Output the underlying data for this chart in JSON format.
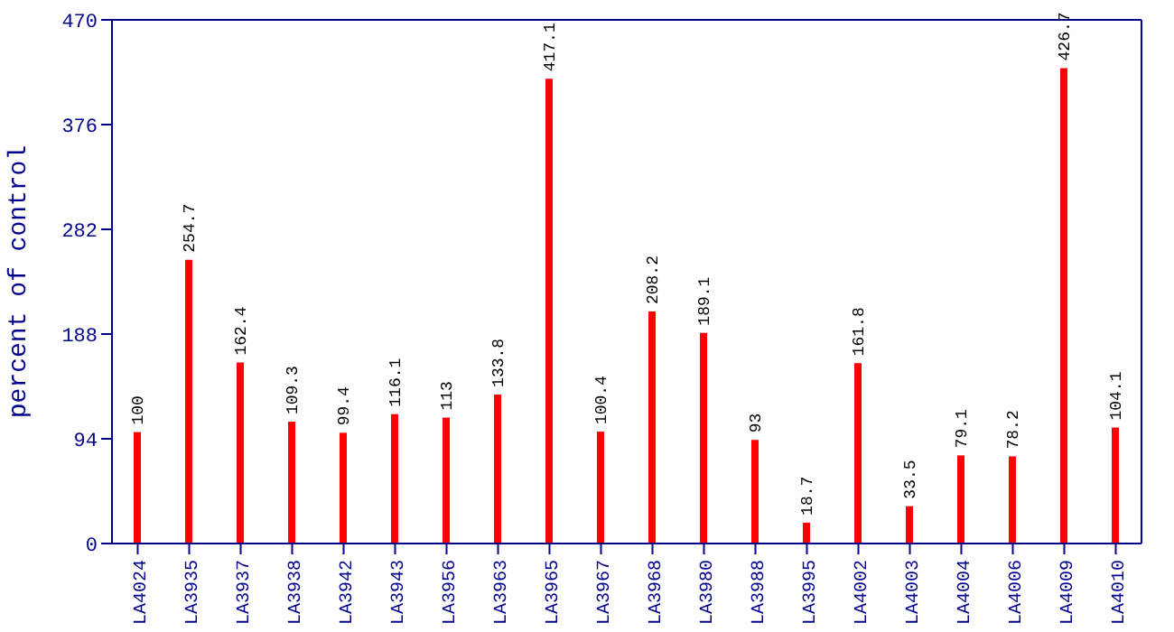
{
  "chart_data": {
    "type": "bar",
    "ylabel": "percent of control",
    "categories": [
      "LA4024",
      "LA3935",
      "LA3937",
      "LA3938",
      "LA3942",
      "LA3943",
      "LA3956",
      "LA3963",
      "LA3965",
      "LA3967",
      "LA3968",
      "LA3980",
      "LA3988",
      "LA3995",
      "LA4002",
      "LA4003",
      "LA4004",
      "LA4006",
      "LA4009",
      "LA4010"
    ],
    "values": [
      100,
      254.7,
      162.4,
      109.3,
      99.4,
      116.1,
      113,
      133.8,
      417.1,
      100.4,
      208.2,
      189.1,
      93,
      18.7,
      161.8,
      33.5,
      79.1,
      78.2,
      426.7,
      104.1
    ],
    "color": "#ff0000",
    "ylim": [
      0,
      470
    ],
    "yticks": [
      0,
      94,
      188,
      282,
      376,
      470
    ],
    "grid": false,
    "data_labels": true
  }
}
